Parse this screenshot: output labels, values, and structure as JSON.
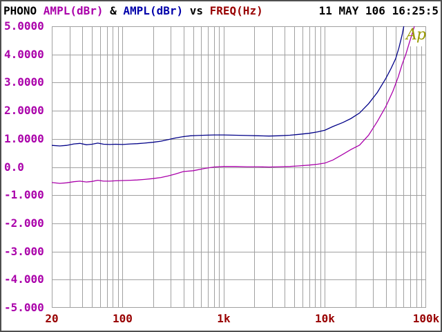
{
  "header": {
    "title_parts": [
      {
        "text": "PHONO ",
        "color": "#000000"
      },
      {
        "text": "AMPL(dBr)",
        "color": "#aa00aa"
      },
      {
        "text": " & ",
        "color": "#000000"
      },
      {
        "text": "AMPL(dBr)",
        "color": "#0000aa"
      },
      {
        "text": " vs ",
        "color": "#000000"
      },
      {
        "text": "FREQ(Hz)",
        "color": "#990000"
      }
    ],
    "datetime": "11 MAY 106 16:25:5"
  },
  "logo": {
    "text": "Ap",
    "color": "#999900"
  },
  "colors": {
    "grid": "#a0a0a0",
    "plot_border": "#a0a0a0",
    "y_tick_label": "#aa00aa",
    "x_tick_label": "#990000",
    "window_frame": "#4f4f4f",
    "background": "#ffffff"
  },
  "chart_data": {
    "type": "line",
    "title": "PHONO AMPL(dBr) & AMPL(dBr) vs FREQ(Hz)",
    "xlabel": "FREQ(Hz)",
    "ylabel": "AMPL(dBr)",
    "x_scale": "log",
    "xlim": [
      20,
      100000
    ],
    "ylim": [
      -5,
      5
    ],
    "grid": "on",
    "y_ticks": [
      {
        "v": 5,
        "label": "5.0000"
      },
      {
        "v": 4,
        "label": "4.0000"
      },
      {
        "v": 3,
        "label": "3.0000"
      },
      {
        "v": 2,
        "label": "2.0000"
      },
      {
        "v": 1,
        "label": "1.0000"
      },
      {
        "v": 0,
        "label": "0.0"
      },
      {
        "v": -1,
        "label": "-1.000"
      },
      {
        "v": -2,
        "label": "-2.000"
      },
      {
        "v": -3,
        "label": "-3.000"
      },
      {
        "v": -4,
        "label": "-4.000"
      },
      {
        "v": -5,
        "label": "-5.000"
      }
    ],
    "x_ticks": [
      {
        "f": 20,
        "label": "20"
      },
      {
        "f": 100,
        "label": "100"
      },
      {
        "f": 1000,
        "label": "1k"
      },
      {
        "f": 10000,
        "label": "10k"
      },
      {
        "f": 100000,
        "label": "100k"
      }
    ],
    "series": [
      {
        "name": "AMPL(dBr) upper trace",
        "color": "#000088",
        "points": [
          [
            20,
            0.77
          ],
          [
            24,
            0.75
          ],
          [
            28,
            0.77
          ],
          [
            33,
            0.82
          ],
          [
            38,
            0.84
          ],
          [
            44,
            0.79
          ],
          [
            50,
            0.81
          ],
          [
            57,
            0.85
          ],
          [
            65,
            0.81
          ],
          [
            75,
            0.8
          ],
          [
            85,
            0.81
          ],
          [
            100,
            0.8
          ],
          [
            120,
            0.82
          ],
          [
            140,
            0.83
          ],
          [
            165,
            0.85
          ],
          [
            200,
            0.88
          ],
          [
            240,
            0.92
          ],
          [
            280,
            0.97
          ],
          [
            330,
            1.03
          ],
          [
            400,
            1.08
          ],
          [
            470,
            1.11
          ],
          [
            550,
            1.12
          ],
          [
            650,
            1.13
          ],
          [
            800,
            1.14
          ],
          [
            1000,
            1.14
          ],
          [
            1300,
            1.13
          ],
          [
            1700,
            1.12
          ],
          [
            2200,
            1.11
          ],
          [
            2800,
            1.1
          ],
          [
            3500,
            1.11
          ],
          [
            4500,
            1.13
          ],
          [
            5500,
            1.16
          ],
          [
            7000,
            1.2
          ],
          [
            8500,
            1.25
          ],
          [
            10000,
            1.31
          ],
          [
            12000,
            1.44
          ],
          [
            15000,
            1.58
          ],
          [
            18000,
            1.72
          ],
          [
            22000,
            1.92
          ],
          [
            27000,
            2.25
          ],
          [
            33000,
            2.65
          ],
          [
            40000,
            3.15
          ],
          [
            45000,
            3.5
          ],
          [
            50000,
            3.85
          ],
          [
            54000,
            4.25
          ],
          [
            58000,
            4.7
          ],
          [
            61000,
            5.1
          ]
        ]
      },
      {
        "name": "AMPL(dBr) lower trace",
        "color": "#aa00aa",
        "points": [
          [
            20,
            -0.55
          ],
          [
            24,
            -0.58
          ],
          [
            28,
            -0.56
          ],
          [
            33,
            -0.52
          ],
          [
            38,
            -0.5
          ],
          [
            44,
            -0.53
          ],
          [
            50,
            -0.51
          ],
          [
            57,
            -0.47
          ],
          [
            65,
            -0.5
          ],
          [
            75,
            -0.5
          ],
          [
            85,
            -0.49
          ],
          [
            100,
            -0.48
          ],
          [
            120,
            -0.47
          ],
          [
            140,
            -0.46
          ],
          [
            165,
            -0.44
          ],
          [
            200,
            -0.41
          ],
          [
            240,
            -0.37
          ],
          [
            280,
            -0.32
          ],
          [
            330,
            -0.25
          ],
          [
            400,
            -0.16
          ],
          [
            500,
            -0.13
          ],
          [
            650,
            -0.05
          ],
          [
            800,
            0.0
          ],
          [
            1000,
            0.02
          ],
          [
            1300,
            0.02
          ],
          [
            1700,
            0.01
          ],
          [
            2200,
            0.01
          ],
          [
            2800,
            0.0
          ],
          [
            3500,
            0.01
          ],
          [
            4500,
            0.02
          ],
          [
            5500,
            0.04
          ],
          [
            7000,
            0.07
          ],
          [
            8500,
            0.1
          ],
          [
            10000,
            0.14
          ],
          [
            12000,
            0.25
          ],
          [
            15000,
            0.45
          ],
          [
            18000,
            0.62
          ],
          [
            22000,
            0.78
          ],
          [
            27000,
            1.13
          ],
          [
            33000,
            1.62
          ],
          [
            40000,
            2.15
          ],
          [
            47000,
            2.7
          ],
          [
            53000,
            3.2
          ],
          [
            58000,
            3.65
          ],
          [
            63000,
            4.0
          ],
          [
            68000,
            4.4
          ],
          [
            73000,
            4.75
          ],
          [
            78000,
            5.1
          ]
        ]
      }
    ],
    "legend": "none"
  }
}
